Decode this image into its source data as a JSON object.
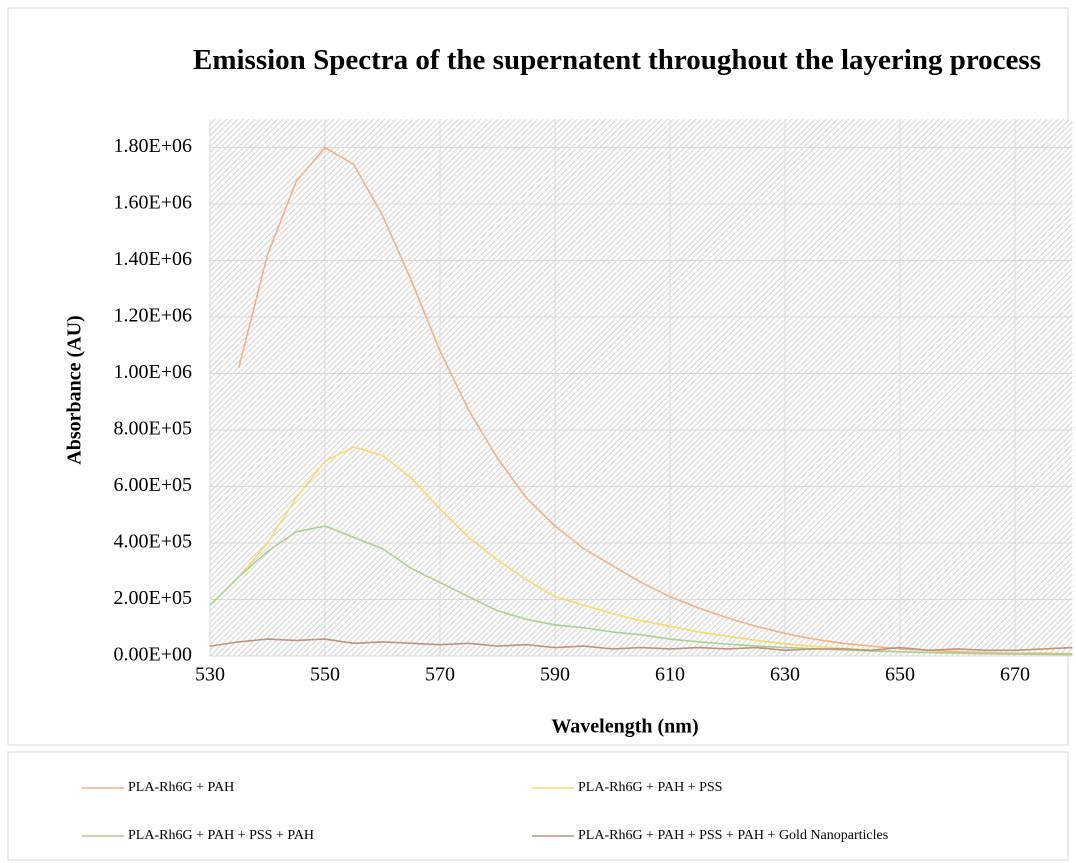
{
  "chart_data": {
    "type": "line",
    "title": "Emission Spectra of the supernatent throughout the layering process",
    "x_label": "Wavelength (nm)",
    "y_label": "Absorbance (AU)",
    "x": [
      530,
      535,
      540,
      545,
      550,
      555,
      560,
      565,
      570,
      575,
      580,
      585,
      590,
      595,
      600,
      605,
      610,
      615,
      620,
      625,
      630,
      635,
      640,
      645,
      650,
      655,
      660,
      665,
      670,
      675,
      680
    ],
    "series": [
      {
        "name": "PLA-Rh6G + PAH",
        "color": "#f4b183",
        "values": [
          null,
          1020000,
          1420000,
          1680000,
          1800000,
          1740000,
          1560000,
          1330000,
          1080000,
          870000,
          700000,
          560000,
          460000,
          380000,
          320000,
          260000,
          210000,
          170000,
          135000,
          105000,
          80000,
          60000,
          45000,
          35000,
          25000,
          20000,
          15000,
          12000,
          10000,
          10000,
          8000
        ]
      },
      {
        "name": "PLA-Rh6G + PAH + PSS",
        "color": "#ffd966",
        "values": [
          180000,
          280000,
          400000,
          560000,
          690000,
          740000,
          710000,
          630000,
          520000,
          420000,
          340000,
          270000,
          210000,
          180000,
          150000,
          125000,
          105000,
          85000,
          70000,
          55000,
          43000,
          34000,
          27000,
          20000,
          15000,
          12000,
          10000,
          8000,
          7000,
          6000,
          5000
        ]
      },
      {
        "name": "PLA-Rh6G + PAH + PSS + PAH",
        "color": "#a9d18e",
        "values": [
          180000,
          280000,
          370000,
          440000,
          460000,
          420000,
          380000,
          310000,
          260000,
          210000,
          160000,
          130000,
          110000,
          100000,
          85000,
          75000,
          60000,
          50000,
          42000,
          35000,
          30000,
          26000,
          22000,
          18000,
          15000,
          12000,
          10000,
          8000,
          7000,
          6000,
          5000
        ]
      },
      {
        "name": "PLA-Rh6G + PAH + PSS + PAH + Gold Nanoparticles",
        "color": "#c0927a",
        "values": [
          35000,
          50000,
          60000,
          55000,
          60000,
          45000,
          50000,
          45000,
          40000,
          45000,
          35000,
          40000,
          30000,
          35000,
          25000,
          30000,
          25000,
          30000,
          25000,
          30000,
          20000,
          25000,
          25000,
          20000,
          30000,
          20000,
          25000,
          20000,
          20000,
          25000,
          30000
        ]
      }
    ],
    "xlim": [
      530,
      680
    ],
    "xticks": [
      530,
      550,
      570,
      590,
      610,
      630,
      650,
      670
    ],
    "ylim": [
      0,
      1900000
    ],
    "yticks": [
      {
        "value": 0,
        "label": "0.00E+00"
      },
      {
        "value": 200000,
        "label": "2.00E+05"
      },
      {
        "value": 400000,
        "label": "4.00E+05"
      },
      {
        "value": 600000,
        "label": "6.00E+05"
      },
      {
        "value": 800000,
        "label": "8.00E+05"
      },
      {
        "value": 1000000,
        "label": "1.00E+06"
      },
      {
        "value": 1200000,
        "label": "1.20E+06"
      },
      {
        "value": 1400000,
        "label": "1.40E+06"
      },
      {
        "value": 1600000,
        "label": "1.60E+06"
      },
      {
        "value": 1800000,
        "label": "1.80E+06"
      }
    ],
    "grid": true,
    "legend": "bottom"
  }
}
